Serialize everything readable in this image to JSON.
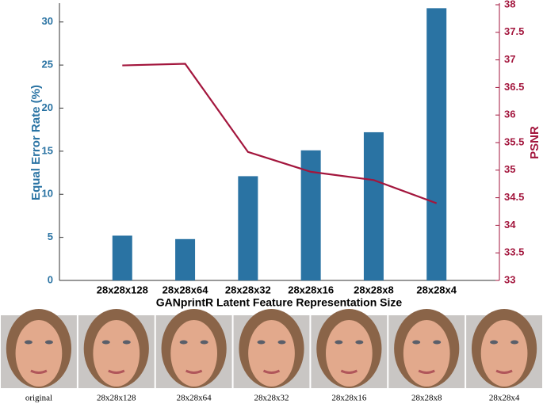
{
  "chart_data": {
    "type": "bar-line",
    "xlabel": "GANprintR Latent Feature Representation Size",
    "ylabel": "Equal Error Rate (%)",
    "y2label": "PSNR",
    "categories": [
      "28x28x128",
      "28x28x64",
      "28x28x32",
      "28x28x16",
      "28x28x8",
      "28x28x4"
    ],
    "series": [
      {
        "name": "Equal Error Rate (%)",
        "type": "bar",
        "color": "#2a73a3",
        "values": [
          5.2,
          4.8,
          12.1,
          15.1,
          17.2,
          31.6
        ]
      },
      {
        "name": "PSNR",
        "type": "line",
        "axis": "y2",
        "color": "#a3163d",
        "values": [
          36.9,
          36.93,
          35.33,
          34.97,
          34.82,
          34.4
        ]
      }
    ],
    "ylim": [
      0,
      32
    ],
    "yticks": [
      0,
      5,
      10,
      15,
      20,
      25,
      30
    ],
    "y2lim": [
      33,
      38
    ],
    "y2ticks": [
      33,
      33.5,
      34,
      34.5,
      35,
      35.5,
      36,
      36.5,
      37,
      37.5,
      38
    ],
    "grid": false
  },
  "image_strip": {
    "labels": [
      "original",
      "28x28x128",
      "28x28x64",
      "28x28x32",
      "28x28x16",
      "28x28x8",
      "28x28x4"
    ]
  }
}
